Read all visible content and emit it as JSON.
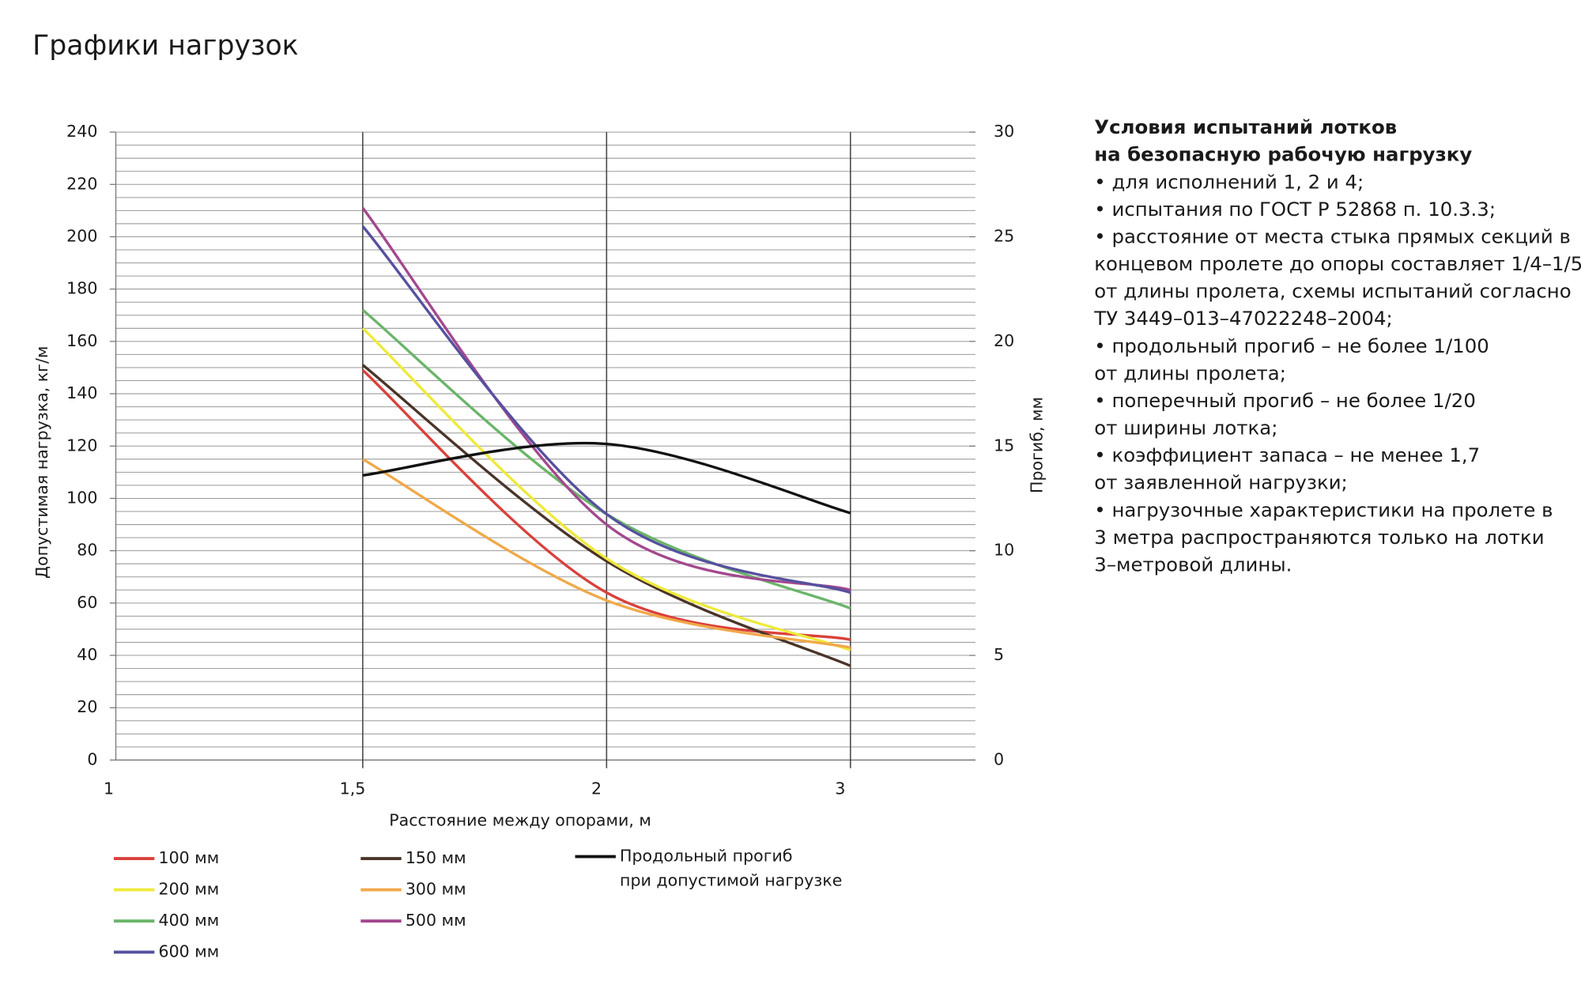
{
  "header": {
    "title": "Графики нагрузок"
  },
  "chart_data": {
    "type": "line",
    "x_label": "Расстояние между опорами, м",
    "y_label": "Допустимая нагрузка, кг/м",
    "y2_label": "Прогиб, мм",
    "categories": [
      "1",
      "1,5",
      "2",
      "3"
    ],
    "ylim": [
      0,
      240
    ],
    "yticks": [
      0,
      20,
      40,
      60,
      80,
      100,
      120,
      140,
      160,
      180,
      200,
      220,
      240
    ],
    "y2lim": [
      0,
      30
    ],
    "y2ticks": [
      0,
      5,
      10,
      15,
      20,
      25,
      30
    ],
    "grid": true,
    "series": [
      {
        "name": "100 мм",
        "color": "#d9413b",
        "values": [
          null,
          149,
          64,
          46
        ]
      },
      {
        "name": "150 мм",
        "color": "#4a3428",
        "values": [
          null,
          151,
          76,
          36
        ]
      },
      {
        "name": "200 мм",
        "color": "#eeea3a",
        "values": [
          null,
          165,
          77,
          42
        ]
      },
      {
        "name": "300 мм",
        "color": "#f0a94a",
        "values": [
          null,
          115,
          61,
          43
        ]
      },
      {
        "name": "400 мм",
        "color": "#6bb56a",
        "values": [
          null,
          172,
          94,
          58
        ]
      },
      {
        "name": "500 мм",
        "color": "#a3488e",
        "values": [
          null,
          211,
          90,
          65
        ]
      },
      {
        "name": "600 мм",
        "color": "#56509f",
        "values": [
          null,
          204,
          94,
          64
        ]
      },
      {
        "name": "Продольный прогиб\nпри допустимой нагрузке",
        "color": "#111111",
        "axis": "y2",
        "values": [
          null,
          13.6,
          15.1,
          11.8
        ]
      }
    ]
  },
  "notes": {
    "title": [
      "Условия испытаний лотков",
      "на безопасную рабочую нагрузку"
    ],
    "lines": [
      "• для исполнений 1, 2 и 4;",
      "• испытания по ГОСТ Р 52868 п. 10.3.3;",
      "• расстояние от места стыка прямых секций в",
      "концевом пролете до опоры составляет 1/4–1/5",
      "от длины пролета, схемы испытаний согласно",
      "ТУ 3449–013–47022248–2004;",
      "• продольный прогиб – не более 1/100",
      "от длины пролета;",
      "• поперечный прогиб – не более 1/20",
      "от ширины лотка;",
      "• коэффициент запаса – не менее 1,7",
      "от заявленной нагрузки;",
      "• нагрузочные характеристики на пролете в",
      "3 метра распространяются только на лотки",
      "3–метровой длины."
    ]
  }
}
